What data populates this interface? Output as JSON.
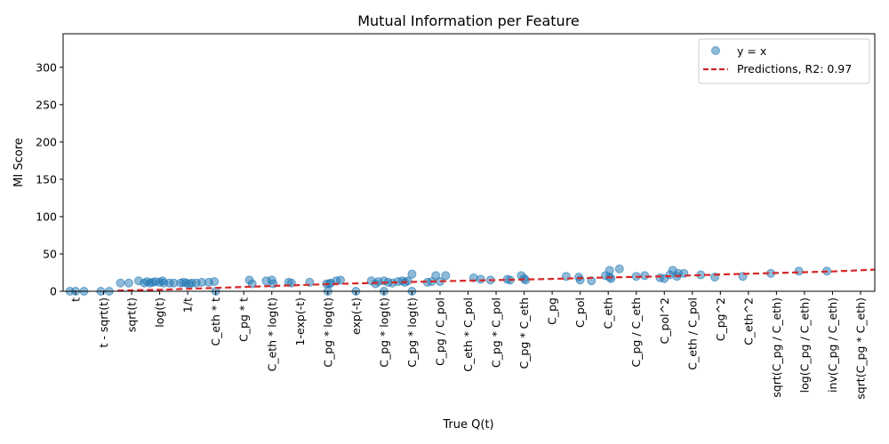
{
  "chart_data": {
    "type": "scatter",
    "title": "Mutual Information per Feature",
    "xlabel": "True Q(t)",
    "ylabel": "MI Score",
    "ylim": [
      0,
      345
    ],
    "yticks": [
      0,
      50,
      100,
      150,
      200,
      250,
      300
    ],
    "grid": false,
    "legend_position": "top-right",
    "categories": [
      "t",
      "t - sqrt(t)",
      "sqrt(t)",
      "log(t)",
      "1/t",
      "C_eth * t",
      "C_pg * t",
      "C_eth * log(t)",
      "1-exp(-t)",
      "C_pg * log(t)",
      "exp(-t)",
      "C_pg * log(t)",
      "C_pg * log(t)",
      "C_pg / C_pol",
      "C_eth * C_pol",
      "C_pg * C_pol",
      "C_pg * C_eth",
      "C_pg",
      "C_pol",
      "C_eth",
      "C_pg / C_eth",
      "C_pol^2",
      "C_eth / C_pol",
      "C_pg^2",
      "C_eth^2",
      "sqrt(C_pg / C_eth)",
      "log(C_pg / C_eth)",
      "inv(C_pg / C_eth)",
      "sqrt(C_pg * C_eth)"
    ],
    "series": [
      {
        "name": "y = x",
        "kind": "scatter",
        "color": "#1f77b4",
        "points": [
          [
            0.0,
            0
          ],
          [
            0.3,
            0
          ],
          [
            -0.2,
            0
          ],
          [
            0.9,
            0
          ],
          [
            1.2,
            0
          ],
          [
            1.6,
            11
          ],
          [
            1.9,
            11
          ],
          [
            2.25,
            14
          ],
          [
            2.45,
            11
          ],
          [
            2.55,
            13
          ],
          [
            2.65,
            11
          ],
          [
            2.75,
            12
          ],
          [
            2.85,
            13
          ],
          [
            3.0,
            12
          ],
          [
            3.1,
            14
          ],
          [
            3.15,
            11
          ],
          [
            3.35,
            11
          ],
          [
            3.5,
            11
          ],
          [
            3.75,
            11
          ],
          [
            3.85,
            12
          ],
          [
            3.95,
            11
          ],
          [
            4.05,
            10
          ],
          [
            4.15,
            11
          ],
          [
            4.3,
            11
          ],
          [
            4.5,
            12
          ],
          [
            4.75,
            12
          ],
          [
            4.95,
            13
          ],
          [
            5.0,
            0
          ],
          [
            6.2,
            15
          ],
          [
            6.3,
            10
          ],
          [
            6.8,
            14
          ],
          [
            7.0,
            15
          ],
          [
            7.05,
            10
          ],
          [
            7.6,
            12
          ],
          [
            7.7,
            11
          ],
          [
            8.35,
            12
          ],
          [
            8.95,
            10
          ],
          [
            9.05,
            10
          ],
          [
            9.1,
            11
          ],
          [
            9.3,
            14
          ],
          [
            9.45,
            15
          ],
          [
            9.0,
            0
          ],
          [
            10.0,
            0
          ],
          [
            10.55,
            14
          ],
          [
            10.7,
            10
          ],
          [
            10.8,
            13
          ],
          [
            11.0,
            14
          ],
          [
            11.15,
            12
          ],
          [
            11.3,
            11
          ],
          [
            11.5,
            13
          ],
          [
            11.65,
            14
          ],
          [
            11.75,
            12
          ],
          [
            11.85,
            14
          ],
          [
            12.0,
            23
          ],
          [
            12.0,
            0
          ],
          [
            11.0,
            0
          ],
          [
            12.55,
            12
          ],
          [
            12.7,
            13
          ],
          [
            12.85,
            21
          ],
          [
            13.0,
            13
          ],
          [
            13.2,
            21
          ],
          [
            14.2,
            18
          ],
          [
            14.45,
            16
          ],
          [
            14.8,
            15
          ],
          [
            15.4,
            16
          ],
          [
            15.5,
            15
          ],
          [
            15.9,
            21
          ],
          [
            16.0,
            17
          ],
          [
            16.05,
            15
          ],
          [
            17.5,
            20
          ],
          [
            17.95,
            19
          ],
          [
            18.0,
            15
          ],
          [
            18.4,
            14
          ],
          [
            18.9,
            21
          ],
          [
            19.05,
            19
          ],
          [
            19.1,
            17
          ],
          [
            19.05,
            28
          ],
          [
            19.4,
            30
          ],
          [
            20.0,
            20
          ],
          [
            20.3,
            21
          ],
          [
            20.85,
            18
          ],
          [
            21.0,
            17
          ],
          [
            21.2,
            22
          ],
          [
            21.3,
            28
          ],
          [
            21.5,
            24
          ],
          [
            21.45,
            20
          ],
          [
            21.7,
            24
          ],
          [
            22.3,
            22
          ],
          [
            22.8,
            19
          ],
          [
            23.8,
            20
          ],
          [
            24.8,
            24
          ],
          [
            25.8,
            27
          ],
          [
            26.8,
            27
          ],
          [
            28.7,
            21
          ],
          [
            29.0,
            19
          ]
        ]
      },
      {
        "name": "Predictions, R2: 0.97",
        "kind": "line",
        "color": "#d62728",
        "style": "dashed",
        "x": [
          1.5,
          3,
          5,
          7,
          9,
          11,
          13,
          15,
          17,
          19,
          21,
          23,
          25,
          27,
          29.4
        ],
        "y": [
          1.0,
          2.0,
          4.5,
          7,
          9.5,
          11.5,
          13.5,
          15,
          16.5,
          18.5,
          20,
          22.5,
          24.5,
          26.5,
          29
        ]
      }
    ]
  }
}
